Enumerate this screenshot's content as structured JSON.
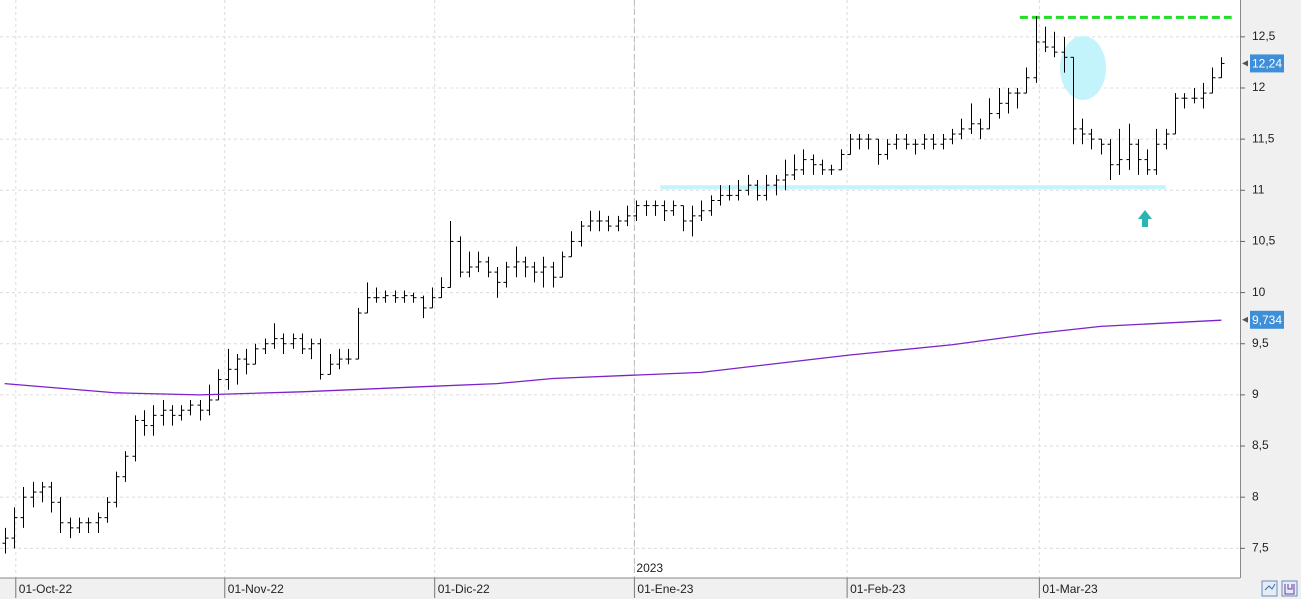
{
  "chart_data": {
    "type": "ohlc",
    "xlim": [
      -0.5,
      133
    ],
    "ylim": [
      7.21,
      12.86
    ],
    "xticks": [
      {
        "value": 1.2,
        "label": "01-Oct-22"
      },
      {
        "value": 23.7,
        "label": "01-Nov-22"
      },
      {
        "value": 46.3,
        "label": "01-Dic-22"
      },
      {
        "value": 67.8,
        "label": "01-Ene-23"
      },
      {
        "value": 90.7,
        "label": "01-Feb-23"
      },
      {
        "value": 111.4,
        "label": "01-Mar-23"
      }
    ],
    "year_marker": {
      "value": 67.8,
      "label": "2023"
    },
    "yticks": [
      {
        "value": 7.5,
        "label": "7,5"
      },
      8,
      {
        "value": 8.5,
        "label": "8,5"
      },
      9,
      {
        "value": 9.5,
        "label": "9,5"
      },
      10,
      {
        "value": 10.5,
        "label": "10,5"
      },
      11,
      {
        "value": 11.5,
        "label": "11,5"
      },
      12,
      {
        "value": 12.5,
        "label": "12,5"
      }
    ],
    "grid": true,
    "series": [
      {
        "type": "ohlc",
        "color": "#000000",
        "open": [
          7.55,
          7.6,
          7.8,
          8.0,
          8.05,
          8.1,
          7.95,
          7.75,
          7.7,
          7.75,
          7.75,
          7.8,
          7.95,
          8.2,
          8.4,
          8.75,
          8.7,
          8.8,
          8.85,
          8.8,
          8.85,
          8.9,
          8.85,
          8.95,
          9.15,
          9.25,
          9.35,
          9.3,
          9.45,
          9.5,
          9.55,
          9.5,
          9.55,
          9.45,
          9.5,
          9.2,
          9.3,
          9.35,
          9.35,
          9.8,
          9.95,
          9.95,
          9.97,
          9.95,
          9.97,
          9.95,
          9.85,
          9.95,
          10.05,
          10.5,
          10.2,
          10.25,
          10.3,
          10.2,
          10.1,
          10.25,
          10.3,
          10.25,
          10.2,
          10.25,
          10.15,
          10.35,
          10.5,
          10.65,
          10.7,
          10.7,
          10.65,
          10.7,
          10.75,
          10.85,
          10.85,
          10.85,
          10.8,
          10.85,
          10.7,
          10.75,
          10.8,
          10.9,
          10.95,
          10.95,
          11.0,
          11.05,
          10.95,
          11.05,
          11.1,
          11.15,
          11.2,
          11.3,
          11.25,
          11.2,
          11.2,
          11.35,
          11.5,
          11.5,
          11.5,
          11.35,
          11.45,
          11.5,
          11.45,
          11.45,
          11.5,
          11.45,
          11.5,
          11.55,
          11.6,
          11.65,
          11.6,
          11.75,
          11.85,
          11.95,
          11.95,
          12.1,
          12.45,
          12.4,
          12.35,
          12.3,
          11.6,
          11.55,
          11.5,
          11.45,
          11.25,
          11.3,
          11.45,
          11.3,
          11.2,
          11.45,
          11.55,
          11.9,
          11.9,
          11.9,
          11.95,
          12.1
        ],
        "high": [
          7.7,
          7.9,
          8.1,
          8.15,
          8.15,
          8.15,
          8.0,
          7.8,
          7.8,
          7.8,
          7.85,
          8.0,
          8.25,
          8.45,
          8.8,
          8.85,
          8.9,
          8.95,
          8.9,
          8.9,
          8.95,
          8.95,
          9.1,
          9.25,
          9.45,
          9.4,
          9.45,
          9.5,
          9.55,
          9.7,
          9.6,
          9.6,
          9.6,
          9.55,
          9.55,
          9.4,
          9.45,
          9.45,
          9.85,
          10.1,
          10.05,
          10.02,
          10.02,
          10.02,
          10.0,
          9.97,
          10.05,
          10.15,
          10.7,
          10.55,
          10.4,
          10.4,
          10.35,
          10.25,
          10.3,
          10.45,
          10.35,
          10.3,
          10.35,
          10.3,
          10.4,
          10.6,
          10.7,
          10.8,
          10.8,
          10.75,
          10.75,
          10.85,
          10.9,
          10.9,
          10.9,
          10.9,
          10.9,
          10.85,
          10.85,
          10.9,
          10.95,
          11.05,
          11.05,
          11.1,
          11.15,
          11.1,
          11.15,
          11.15,
          11.3,
          11.35,
          11.4,
          11.35,
          11.3,
          11.25,
          11.4,
          11.55,
          11.55,
          11.55,
          11.5,
          11.5,
          11.55,
          11.55,
          11.5,
          11.55,
          11.55,
          11.55,
          11.6,
          11.7,
          11.85,
          11.7,
          11.9,
          12.0,
          12.0,
          12.0,
          12.2,
          12.7,
          12.6,
          12.55,
          12.5,
          12.3,
          11.7,
          11.6,
          11.5,
          11.5,
          11.6,
          11.65,
          11.5,
          11.4,
          11.6,
          11.6,
          11.95,
          11.95,
          12.0,
          12.05,
          12.2,
          12.3
        ],
        "low": [
          7.45,
          7.5,
          7.7,
          7.9,
          7.95,
          7.85,
          7.65,
          7.6,
          7.65,
          7.65,
          7.65,
          7.75,
          7.9,
          8.15,
          8.35,
          8.6,
          8.6,
          8.7,
          8.7,
          8.75,
          8.8,
          8.75,
          8.8,
          8.95,
          9.05,
          9.1,
          9.2,
          9.3,
          9.4,
          9.45,
          9.4,
          9.45,
          9.4,
          9.35,
          9.15,
          9.2,
          9.25,
          9.3,
          9.35,
          9.8,
          9.9,
          9.9,
          9.9,
          9.9,
          9.9,
          9.75,
          9.85,
          9.95,
          10.05,
          10.15,
          10.15,
          10.2,
          10.15,
          9.95,
          10.05,
          10.15,
          10.15,
          10.1,
          10.05,
          10.05,
          10.15,
          10.35,
          10.45,
          10.6,
          10.6,
          10.6,
          10.6,
          10.65,
          10.7,
          10.75,
          10.75,
          10.7,
          10.75,
          10.6,
          10.55,
          10.7,
          10.75,
          10.85,
          10.9,
          10.9,
          10.95,
          10.9,
          10.9,
          10.95,
          11.0,
          11.1,
          11.15,
          11.15,
          11.15,
          11.15,
          11.2,
          11.35,
          11.4,
          11.4,
          11.25,
          11.3,
          11.4,
          11.4,
          11.35,
          11.4,
          11.4,
          11.4,
          11.45,
          11.5,
          11.55,
          11.5,
          11.6,
          11.7,
          11.75,
          11.8,
          11.95,
          12.05,
          12.35,
          12.3,
          12.15,
          11.45,
          11.45,
          11.4,
          11.35,
          11.1,
          11.15,
          11.2,
          11.15,
          11.15,
          11.15,
          11.4,
          11.55,
          11.8,
          11.85,
          11.8,
          11.95,
          12.1
        ],
        "close": [
          7.6,
          7.8,
          8.0,
          8.05,
          8.1,
          7.95,
          7.75,
          7.7,
          7.75,
          7.75,
          7.8,
          7.95,
          8.2,
          8.4,
          8.75,
          8.7,
          8.8,
          8.85,
          8.8,
          8.85,
          8.9,
          8.85,
          8.95,
          9.15,
          9.25,
          9.35,
          9.3,
          9.45,
          9.5,
          9.55,
          9.5,
          9.55,
          9.45,
          9.5,
          9.2,
          9.3,
          9.35,
          9.35,
          9.8,
          9.95,
          9.95,
          9.97,
          9.95,
          9.97,
          9.95,
          9.85,
          9.95,
          10.05,
          10.5,
          10.2,
          10.25,
          10.3,
          10.2,
          10.1,
          10.25,
          10.3,
          10.25,
          10.2,
          10.25,
          10.15,
          10.35,
          10.5,
          10.65,
          10.7,
          10.7,
          10.65,
          10.7,
          10.75,
          10.85,
          10.85,
          10.85,
          10.8,
          10.85,
          10.7,
          10.75,
          10.8,
          10.9,
          10.95,
          10.95,
          11.0,
          11.05,
          10.95,
          11.05,
          11.1,
          11.15,
          11.2,
          11.3,
          11.25,
          11.2,
          11.2,
          11.35,
          11.5,
          11.5,
          11.5,
          11.35,
          11.45,
          11.5,
          11.45,
          11.45,
          11.5,
          11.45,
          11.5,
          11.55,
          11.6,
          11.65,
          11.6,
          11.75,
          11.85,
          11.95,
          11.95,
          12.1,
          12.45,
          12.4,
          12.35,
          12.3,
          11.6,
          11.55,
          11.5,
          11.45,
          11.25,
          11.3,
          11.45,
          11.3,
          11.2,
          11.45,
          11.55,
          11.9,
          11.9,
          11.9,
          11.95,
          12.1,
          12.24
        ]
      },
      {
        "type": "line",
        "color": "#7b22c8",
        "x": [
          0,
          12,
          21,
          32,
          45,
          53,
          59,
          75,
          91,
          102,
          111,
          118,
          131
        ],
        "values": [
          9.11,
          9.02,
          9.0,
          9.03,
          9.08,
          9.11,
          9.16,
          9.22,
          9.39,
          9.49,
          9.6,
          9.67,
          9.73
        ]
      }
    ],
    "price_labels": [
      {
        "value": 12.24,
        "label": "12,24",
        "color": "#3f8fd8"
      },
      {
        "value": 9.734,
        "label": "9,734",
        "color": "#3f8fd8"
      }
    ],
    "levels": [
      {
        "value": 12.69,
        "from": 109.3,
        "to": 132.1,
        "color": "#22dd22",
        "dashed": true
      },
      {
        "value": 11.03,
        "from": 70.6,
        "to": 125,
        "color": "#c4f4fb",
        "dashed": false
      }
    ]
  }
}
